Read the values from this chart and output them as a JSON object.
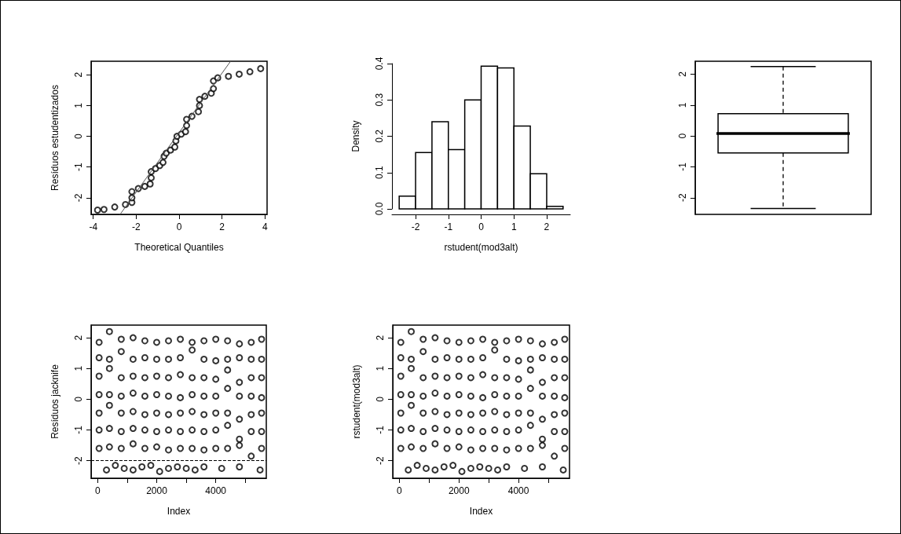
{
  "chart_data": [
    {
      "type": "scatter",
      "xlabel": "Theoretical Quantiles",
      "ylabel": "Resíduos estudentizados",
      "marker": "circle",
      "grid": false,
      "xlim": [
        -4.1,
        4.1
      ],
      "xticks": [
        -4,
        -2,
        0,
        2,
        4
      ],
      "ylim": [
        -2.54,
        2.44
      ],
      "yticks": [
        -2,
        -1,
        0,
        1,
        2
      ],
      "series": [
        {
          "color": "#000000",
          "x": [
            -3.8,
            -3.5,
            -3.0,
            -2.5,
            -2.2,
            -2.2,
            -2.2,
            -1.9,
            -1.6,
            -1.35,
            -1.3,
            -1.3,
            -1.1,
            -0.9,
            -0.75,
            -0.7,
            -0.6,
            -0.4,
            -0.2,
            -0.15,
            -0.1,
            0.1,
            0.3,
            0.35,
            0.35,
            0.6,
            0.9,
            0.95,
            0.95,
            1.2,
            1.5,
            1.6,
            1.6,
            1.8,
            2.3,
            2.8,
            3.3,
            3.8
          ],
          "values": [
            -2.4,
            -2.38,
            -2.3,
            -2.22,
            -2.15,
            -2.0,
            -1.8,
            -1.7,
            -1.63,
            -1.55,
            -1.35,
            -1.15,
            -1.05,
            -0.95,
            -0.85,
            -0.65,
            -0.55,
            -0.45,
            -0.35,
            -0.15,
            0.0,
            0.07,
            0.15,
            0.35,
            0.55,
            0.65,
            0.8,
            1.0,
            1.2,
            1.3,
            1.4,
            1.55,
            1.8,
            1.9,
            1.95,
            2.02,
            2.1,
            2.2
          ]
        },
        {
          "type": "line",
          "color": "#555555",
          "marker": "none",
          "line_style": "solid",
          "x": [
            -2.75,
            2.4
          ],
          "values": [
            -2.54,
            2.44
          ]
        }
      ]
    },
    {
      "type": "histogram",
      "xlabel": "rstudent(mod3alt)",
      "ylabel": "Density",
      "color": "#ffffff",
      "grid": false,
      "xlim": [
        -2.72,
        2.72
      ],
      "xticks": [
        -2,
        -1,
        0,
        1,
        2
      ],
      "ylim": [
        0,
        0.4
      ],
      "yticks": [
        {
          "value": 0,
          "label": "0.0"
        },
        0.1,
        0.2,
        0.3,
        0.4
      ],
      "bins": [
        -2.5,
        -2.0,
        -1.5,
        -1.0,
        -0.5,
        0.0,
        0.5,
        1.0,
        1.5,
        2.0,
        2.5
      ],
      "values": [
        0.035,
        0.155,
        0.24,
        0.163,
        0.3,
        0.393,
        0.388,
        0.228,
        0.097,
        0.007
      ]
    },
    {
      "type": "box",
      "color": "#ffffff",
      "grid": false,
      "categories": [
        null
      ],
      "ylim": [
        -2.54,
        2.42
      ],
      "yticks": [
        -2,
        -1,
        0,
        1,
        2
      ],
      "tick_labels": "y",
      "boxes": [
        {
          "low": -2.35,
          "q1": -0.55,
          "median": 0.08,
          "q3": 0.72,
          "high": 2.25
        }
      ]
    },
    {
      "type": "scatter",
      "xlabel": "Index",
      "ylabel": "Resíduos jacknife",
      "marker": "circle",
      "color": "#000000",
      "grid": false,
      "xlim": [
        -220,
        5710
      ],
      "xticks": [
        0,
        {
          "value": 1000,
          "label": null
        },
        2000,
        {
          "value": 3000,
          "label": null
        },
        4000,
        {
          "value": 5000,
          "label": null
        }
      ],
      "ylim": [
        -2.57,
        2.41
      ],
      "yticks": [
        -2,
        -1,
        0,
        1,
        2
      ],
      "ref_lines": [
        {
          "axis": "y",
          "value": -2,
          "label": null,
          "color": "#000000",
          "line_style": "dashed"
        }
      ],
      "x": [
        50,
        400,
        800,
        1200,
        1600,
        2000,
        2400,
        2800,
        3200,
        3600,
        4000,
        4400,
        4800,
        5200,
        5550,
        50,
        400,
        800,
        1200,
        1600,
        2000,
        2400,
        2800,
        3200,
        3600,
        4000,
        4400,
        4800,
        5200,
        5550,
        50,
        400,
        800,
        1200,
        1600,
        2000,
        2400,
        2800,
        3200,
        3600,
        4000,
        4400,
        4800,
        5200,
        5550,
        50,
        400,
        800,
        1200,
        1600,
        2000,
        2400,
        2800,
        3200,
        3600,
        4000,
        4400,
        4800,
        5200,
        5550,
        50,
        400,
        800,
        1200,
        1600,
        2000,
        2400,
        2800,
        3200,
        3600,
        4000,
        4400,
        4800,
        5200,
        5550,
        50,
        400,
        800,
        1200,
        1600,
        2000,
        2400,
        2800,
        3200,
        3600,
        4000,
        4400,
        4800,
        5200,
        5550,
        50,
        400,
        800,
        1200,
        1600,
        2000,
        2400,
        2800,
        3200,
        3600,
        4000,
        4400,
        4800,
        5200,
        5550,
        300,
        600,
        900,
        1200,
        1500,
        1800,
        2100,
        2400,
        2700,
        3000,
        3300,
        3600,
        4200,
        4800,
        5500
      ],
      "values": [
        1.85,
        2.2,
        1.95,
        2.0,
        1.9,
        1.85,
        1.9,
        1.95,
        1.85,
        1.9,
        1.95,
        1.9,
        1.8,
        1.85,
        1.95,
        1.35,
        1.3,
        1.55,
        1.3,
        1.35,
        1.3,
        1.3,
        1.35,
        1.6,
        1.3,
        1.25,
        1.3,
        1.35,
        1.3,
        1.3,
        0.75,
        1.0,
        0.7,
        0.75,
        0.7,
        0.75,
        0.7,
        0.8,
        0.7,
        0.7,
        0.65,
        0.95,
        0.55,
        0.7,
        0.7,
        0.15,
        0.15,
        0.1,
        0.2,
        0.1,
        0.15,
        0.1,
        0.05,
        0.15,
        0.1,
        0.1,
        0.35,
        0.1,
        0.1,
        0.05,
        -0.45,
        -0.2,
        -0.45,
        -0.4,
        -0.5,
        -0.45,
        -0.5,
        -0.45,
        -0.4,
        -0.5,
        -0.45,
        -0.45,
        -0.65,
        -0.5,
        -0.45,
        -1.0,
        -0.95,
        -1.05,
        -0.95,
        -1.0,
        -1.05,
        -1.0,
        -1.05,
        -1.0,
        -1.05,
        -1.0,
        -0.85,
        -1.3,
        -1.05,
        -1.05,
        -1.6,
        -1.55,
        -1.6,
        -1.45,
        -1.6,
        -1.55,
        -1.65,
        -1.6,
        -1.6,
        -1.65,
        -1.6,
        -1.6,
        -1.5,
        -1.85,
        -1.6,
        -2.3,
        -2.15,
        -2.25,
        -2.3,
        -2.2,
        -2.15,
        -2.35,
        -2.25,
        -2.2,
        -2.25,
        -2.3,
        -2.2,
        -2.25,
        -2.2,
        -2.3
      ]
    },
    {
      "type": "scatter",
      "xlabel": "Index",
      "ylabel": "rstudent(mod3alt)",
      "marker": "circle",
      "color": "#000000",
      "grid": false,
      "xlim": [
        -220,
        5710
      ],
      "xticks": [
        0,
        {
          "value": 1000,
          "label": null
        },
        2000,
        {
          "value": 3000,
          "label": null
        },
        4000,
        {
          "value": 5000,
          "label": null
        }
      ],
      "ylim": [
        -2.57,
        2.41
      ],
      "yticks": [
        -2,
        -1,
        0,
        1,
        2
      ],
      "x": [
        50,
        400,
        800,
        1200,
        1600,
        2000,
        2400,
        2800,
        3200,
        3600,
        4000,
        4400,
        4800,
        5200,
        5550,
        50,
        400,
        800,
        1200,
        1600,
        2000,
        2400,
        2800,
        3200,
        3600,
        4000,
        4400,
        4800,
        5200,
        5550,
        50,
        400,
        800,
        1200,
        1600,
        2000,
        2400,
        2800,
        3200,
        3600,
        4000,
        4400,
        4800,
        5200,
        5550,
        50,
        400,
        800,
        1200,
        1600,
        2000,
        2400,
        2800,
        3200,
        3600,
        4000,
        4400,
        4800,
        5200,
        5550,
        50,
        400,
        800,
        1200,
        1600,
        2000,
        2400,
        2800,
        3200,
        3600,
        4000,
        4400,
        4800,
        5200,
        5550,
        50,
        400,
        800,
        1200,
        1600,
        2000,
        2400,
        2800,
        3200,
        3600,
        4000,
        4400,
        4800,
        5200,
        5550,
        50,
        400,
        800,
        1200,
        1600,
        2000,
        2400,
        2800,
        3200,
        3600,
        4000,
        4400,
        4800,
        5200,
        5550,
        300,
        600,
        900,
        1200,
        1500,
        1800,
        2100,
        2400,
        2700,
        3000,
        3300,
        3600,
        4200,
        4800,
        5500
      ],
      "values": [
        1.85,
        2.2,
        1.95,
        2.0,
        1.9,
        1.85,
        1.9,
        1.95,
        1.85,
        1.9,
        1.95,
        1.9,
        1.8,
        1.85,
        1.95,
        1.35,
        1.3,
        1.55,
        1.3,
        1.35,
        1.3,
        1.3,
        1.35,
        1.6,
        1.3,
        1.25,
        1.3,
        1.35,
        1.3,
        1.3,
        0.75,
        1.0,
        0.7,
        0.75,
        0.7,
        0.75,
        0.7,
        0.8,
        0.7,
        0.7,
        0.65,
        0.95,
        0.55,
        0.7,
        0.7,
        0.15,
        0.15,
        0.1,
        0.2,
        0.1,
        0.15,
        0.1,
        0.05,
        0.15,
        0.1,
        0.1,
        0.35,
        0.1,
        0.1,
        0.05,
        -0.45,
        -0.2,
        -0.45,
        -0.4,
        -0.5,
        -0.45,
        -0.5,
        -0.45,
        -0.4,
        -0.5,
        -0.45,
        -0.45,
        -0.65,
        -0.5,
        -0.45,
        -1.0,
        -0.95,
        -1.05,
        -0.95,
        -1.0,
        -1.05,
        -1.0,
        -1.05,
        -1.0,
        -1.05,
        -1.0,
        -0.85,
        -1.3,
        -1.05,
        -1.05,
        -1.6,
        -1.55,
        -1.6,
        -1.45,
        -1.6,
        -1.55,
        -1.65,
        -1.6,
        -1.6,
        -1.65,
        -1.6,
        -1.6,
        -1.5,
        -1.85,
        -1.6,
        -2.3,
        -2.15,
        -2.25,
        -2.3,
        -2.2,
        -2.15,
        -2.35,
        -2.25,
        -2.2,
        -2.25,
        -2.3,
        -2.2,
        -2.25,
        -2.2,
        -2.3
      ]
    }
  ]
}
